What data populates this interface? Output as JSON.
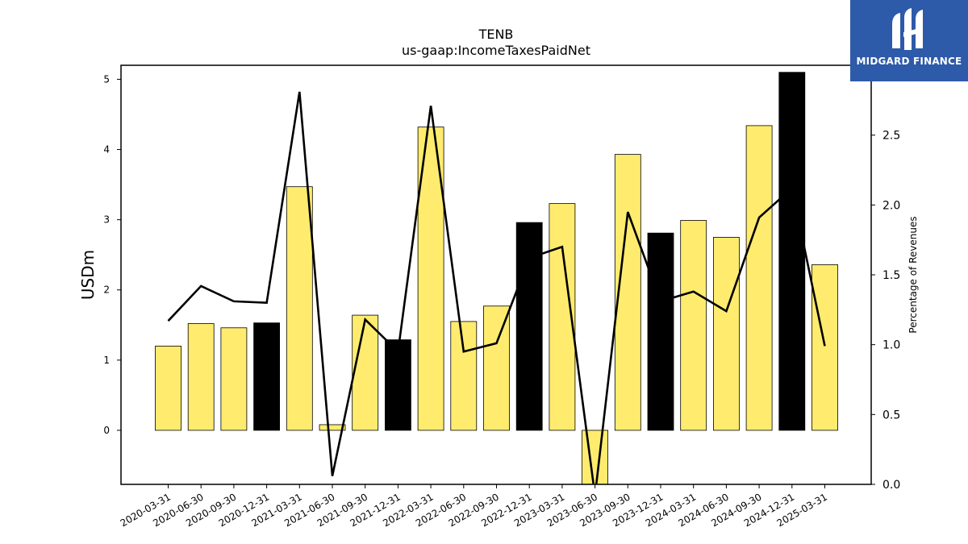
{
  "logo": {
    "text": "MIDGARD FINANCE",
    "background": "#2d5aa9"
  },
  "chart_data": {
    "type": "bar",
    "title": "TENB",
    "subtitle": "us-gaap:IncomeTaxesPaidNet",
    "ylabel": "USDm",
    "ylabel_right": "Percentage of Revenues",
    "ylim": [
      -0.77,
      5.2
    ],
    "ylim_right": [
      0.0,
      3.0
    ],
    "yticks": [
      0,
      1,
      2,
      3,
      4,
      5
    ],
    "yticks_right": [
      0.0,
      0.5,
      1.0,
      1.5,
      2.0,
      2.5
    ],
    "categories": [
      "2020-03-31",
      "2020-06-30",
      "2020-09-30",
      "2020-12-31",
      "2021-03-31",
      "2021-06-30",
      "2021-09-30",
      "2021-12-31",
      "2022-03-31",
      "2022-06-30",
      "2022-09-30",
      "2022-12-31",
      "2023-03-31",
      "2023-06-30",
      "2023-09-30",
      "2023-12-31",
      "2024-03-31",
      "2024-06-30",
      "2024-09-30",
      "2024-12-31",
      "2025-03-31"
    ],
    "series": [
      {
        "kind": "bar",
        "values": [
          1.2,
          1.52,
          1.46,
          1.53,
          3.47,
          0.08,
          1.64,
          1.29,
          4.32,
          1.55,
          1.77,
          2.96,
          3.23,
          -0.78,
          3.93,
          2.81,
          2.99,
          2.75,
          4.34,
          5.1,
          2.36
        ],
        "colors": [
          "#ffec6e",
          "#ffec6e",
          "#ffec6e",
          "#000000",
          "#ffec6e",
          "#ffec6e",
          "#ffec6e",
          "#000000",
          "#ffec6e",
          "#ffec6e",
          "#ffec6e",
          "#000000",
          "#ffec6e",
          "#ffec6e",
          "#ffec6e",
          "#000000",
          "#ffec6e",
          "#ffec6e",
          "#ffec6e",
          "#000000",
          "#ffec6e"
        ]
      },
      {
        "kind": "line",
        "axis": "right",
        "color": "#000000",
        "values": [
          1.17,
          1.42,
          1.31,
          1.3,
          2.81,
          0.06,
          1.18,
          0.95,
          2.71,
          0.95,
          1.01,
          1.62,
          1.7,
          -0.08,
          1.95,
          1.31,
          1.38,
          1.24,
          1.91,
          2.12,
          0.99
        ]
      }
    ],
    "grid": false,
    "legend": "none"
  }
}
